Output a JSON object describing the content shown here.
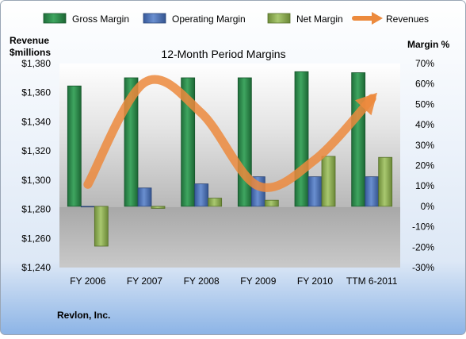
{
  "chart_data": {
    "type": "bar",
    "title": "12-Month Period Margins",
    "company": "Revlon, Inc.",
    "categories": [
      "FY 2006",
      "FY 2007",
      "FY 2008",
      "FY 2009",
      "FY 2010",
      "TTM 6-2011"
    ],
    "left_axis": {
      "label_line1": "Revenue",
      "label_line2": "$millions",
      "min": 1240,
      "max": 1380,
      "step": 20,
      "tick_labels": [
        "$1,240",
        "$1,260",
        "$1,280",
        "$1,300",
        "$1,320",
        "$1,340",
        "$1,360",
        "$1,380"
      ]
    },
    "right_axis": {
      "label": "Margin %",
      "min": -30,
      "max": 70,
      "step": 10,
      "tick_labels": [
        "-30%",
        "-20%",
        "-10%",
        "0%",
        "10%",
        "20%",
        "30%",
        "40%",
        "50%",
        "60%",
        "70%"
      ]
    },
    "series": [
      {
        "name": "Gross Margin",
        "axis": "right",
        "kind": "bar",
        "color": "#2e8b4e",
        "values": [
          59,
          63,
          63,
          63,
          66,
          65.5
        ]
      },
      {
        "name": "Operating Margin",
        "axis": "right",
        "kind": "bar",
        "color": "#4a73b8",
        "values": [
          0,
          9,
          11,
          14.5,
          14.5,
          14.5
        ]
      },
      {
        "name": "Net Margin",
        "axis": "right",
        "kind": "bar",
        "color": "#8cae4e",
        "values": [
          -19.5,
          -1,
          4,
          3,
          24.5,
          24
        ]
      },
      {
        "name": "Revenues",
        "axis": "left",
        "kind": "line",
        "color": "#ec8a3d",
        "values": [
          1297,
          1367,
          1346,
          1296,
          1314,
          1356
        ]
      }
    ],
    "legend_position": "top",
    "grid": false
  }
}
